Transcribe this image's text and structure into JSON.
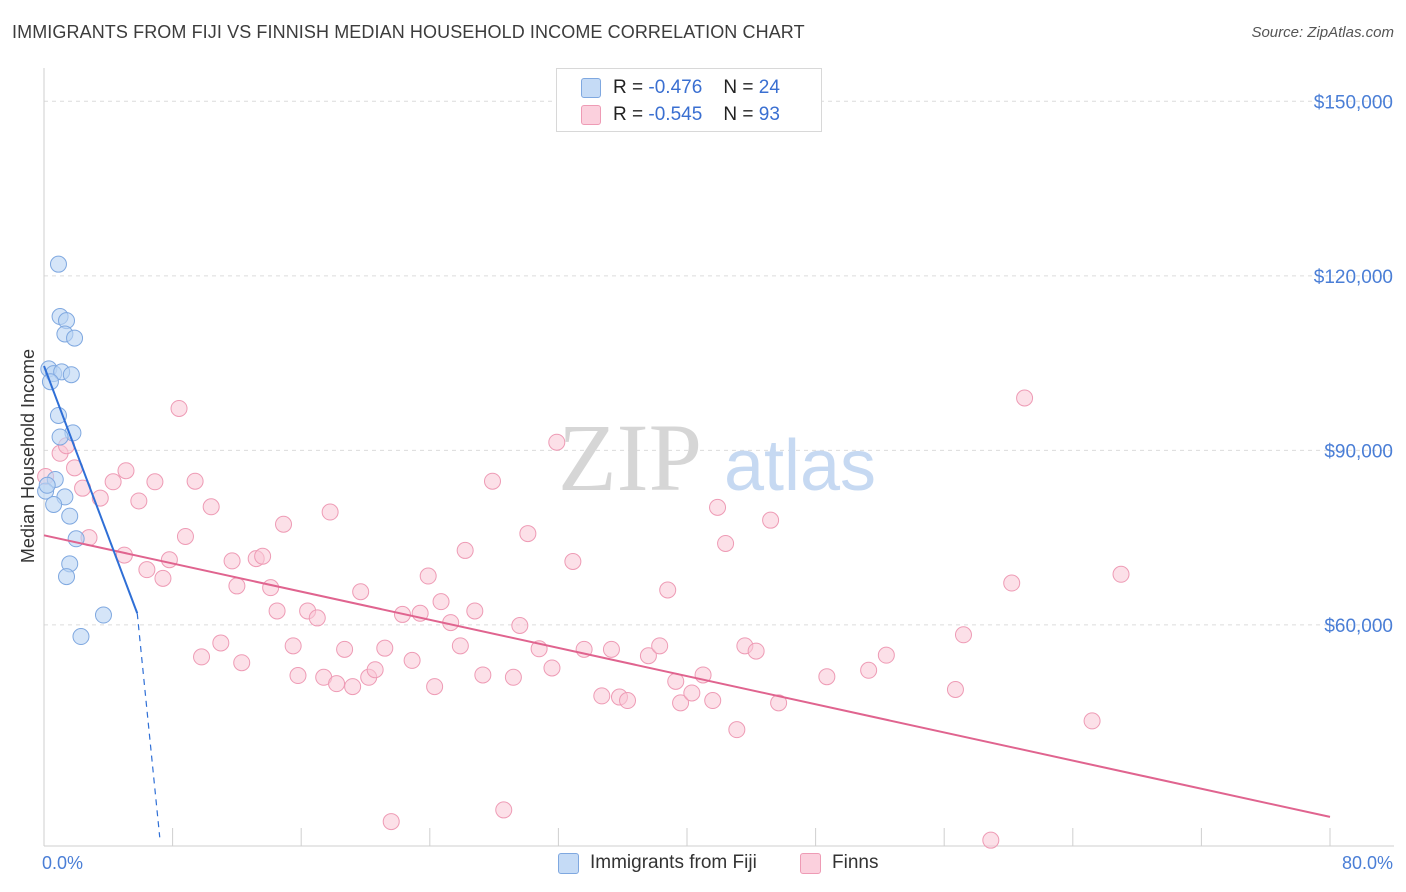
{
  "header": {
    "title": "IMMIGRANTS FROM FIJI VS FINNISH MEDIAN HOUSEHOLD INCOME CORRELATION CHART",
    "source": "Source: ZipAtlas.com"
  },
  "legend": {
    "rows": [
      {
        "r_label": "R =",
        "r_value": "-0.476",
        "n_label": "N =",
        "n_value": "24"
      },
      {
        "r_label": "R =",
        "r_value": "-0.545",
        "n_label": "N =",
        "n_value": "93"
      }
    ],
    "bottom": [
      {
        "label": "Immigrants from Fiji"
      },
      {
        "label": "Finns"
      }
    ]
  },
  "watermark": {
    "zip": "ZIP",
    "atlas": "atlas"
  },
  "colors": {
    "fiji_fill": "#b9d3f3",
    "fiji_stroke": "#7fa8e0",
    "fiji_line": "#2f6fd6",
    "finns_fill": "#f9c7d6",
    "finns_stroke": "#ee9bb5",
    "finns_line": "#e0648f",
    "axis_text": "#4a7ed6",
    "grid": "#dcdcdc"
  },
  "chart_data": {
    "type": "scatter",
    "title": "IMMIGRANTS FROM FIJI VS FINNISH MEDIAN HOUSEHOLD INCOME CORRELATION CHART",
    "xlabel": "",
    "ylabel": "Median Household Income",
    "xlim": [
      0,
      80
    ],
    "ylim": [
      22000,
      154000
    ],
    "x_tick_labels": [
      "0.0%",
      "80.0%"
    ],
    "y_ticks": [
      60000,
      90000,
      120000,
      150000
    ],
    "y_tick_labels": [
      "$60,000",
      "$90,000",
      "$120,000",
      "$150,000"
    ],
    "grid": true,
    "legend_position": "top-center",
    "series": [
      {
        "name": "Immigrants from Fiji",
        "r": -0.476,
        "n": 24,
        "points": [
          [
            0.9,
            122000
          ],
          [
            1.0,
            113000
          ],
          [
            1.4,
            112300
          ],
          [
            1.3,
            110000
          ],
          [
            1.9,
            109300
          ],
          [
            0.3,
            104000
          ],
          [
            0.6,
            103200
          ],
          [
            1.1,
            103500
          ],
          [
            1.7,
            103000
          ],
          [
            0.4,
            101800
          ],
          [
            1.8,
            93000
          ],
          [
            1.0,
            92300
          ],
          [
            0.7,
            85000
          ],
          [
            0.1,
            83000
          ],
          [
            1.3,
            82000
          ],
          [
            0.6,
            80700
          ],
          [
            1.6,
            78700
          ],
          [
            2.0,
            74800
          ],
          [
            1.6,
            70500
          ],
          [
            1.4,
            68300
          ],
          [
            3.7,
            61700
          ],
          [
            2.3,
            58000
          ],
          [
            0.2,
            84000
          ],
          [
            0.9,
            96000
          ]
        ],
        "trend": {
          "x": [
            0,
            5.8
          ],
          "y": [
            104500,
            62000
          ]
        },
        "trend_dashed": {
          "x": [
            5.8,
            7.2
          ],
          "y": [
            62000,
            23500
          ]
        }
      },
      {
        "name": "Finns",
        "r": -0.545,
        "n": 93,
        "points": [
          [
            0.1,
            85500
          ],
          [
            1.0,
            89500
          ],
          [
            1.4,
            90800
          ],
          [
            1.9,
            87000
          ],
          [
            2.4,
            83500
          ],
          [
            2.8,
            75000
          ],
          [
            3.5,
            81800
          ],
          [
            4.3,
            84600
          ],
          [
            5.1,
            86500
          ],
          [
            5.0,
            72000
          ],
          [
            5.9,
            81300
          ],
          [
            6.4,
            69500
          ],
          [
            6.9,
            84600
          ],
          [
            7.4,
            68000
          ],
          [
            7.8,
            71200
          ],
          [
            8.4,
            97200
          ],
          [
            8.8,
            75200
          ],
          [
            9.4,
            84700
          ],
          [
            9.8,
            54500
          ],
          [
            10.4,
            80300
          ],
          [
            11.0,
            56900
          ],
          [
            11.7,
            71000
          ],
          [
            12.3,
            53500
          ],
          [
            12.0,
            66700
          ],
          [
            13.2,
            71400
          ],
          [
            13.6,
            71800
          ],
          [
            14.1,
            66400
          ],
          [
            14.5,
            62400
          ],
          [
            14.9,
            77300
          ],
          [
            15.5,
            56400
          ],
          [
            15.8,
            51300
          ],
          [
            16.4,
            62400
          ],
          [
            17.0,
            61200
          ],
          [
            17.4,
            51000
          ],
          [
            17.8,
            79400
          ],
          [
            18.2,
            49900
          ],
          [
            18.7,
            55800
          ],
          [
            19.2,
            49400
          ],
          [
            19.7,
            65700
          ],
          [
            20.2,
            51000
          ],
          [
            20.6,
            52300
          ],
          [
            21.2,
            56000
          ],
          [
            21.6,
            26200
          ],
          [
            22.3,
            61800
          ],
          [
            22.9,
            53900
          ],
          [
            23.4,
            62000
          ],
          [
            23.9,
            68400
          ],
          [
            24.3,
            49400
          ],
          [
            24.7,
            64000
          ],
          [
            25.3,
            60400
          ],
          [
            25.9,
            56400
          ],
          [
            26.2,
            72800
          ],
          [
            26.8,
            62400
          ],
          [
            27.3,
            51400
          ],
          [
            27.9,
            84700
          ],
          [
            28.6,
            28200
          ],
          [
            29.2,
            51000
          ],
          [
            29.6,
            59900
          ],
          [
            30.1,
            75700
          ],
          [
            30.8,
            55900
          ],
          [
            31.6,
            52600
          ],
          [
            31.9,
            91400
          ],
          [
            32.9,
            70900
          ],
          [
            33.6,
            55800
          ],
          [
            34.7,
            47800
          ],
          [
            35.3,
            55800
          ],
          [
            35.8,
            47600
          ],
          [
            36.3,
            47000
          ],
          [
            37.6,
            54700
          ],
          [
            38.3,
            56400
          ],
          [
            38.8,
            66000
          ],
          [
            39.3,
            50300
          ],
          [
            39.6,
            46600
          ],
          [
            40.3,
            48300
          ],
          [
            41.0,
            51400
          ],
          [
            41.6,
            47000
          ],
          [
            41.9,
            80200
          ],
          [
            42.4,
            74000
          ],
          [
            43.1,
            42000
          ],
          [
            43.6,
            56400
          ],
          [
            44.3,
            55500
          ],
          [
            45.2,
            78000
          ],
          [
            45.7,
            46600
          ],
          [
            48.7,
            51100
          ],
          [
            51.3,
            52200
          ],
          [
            52.4,
            54800
          ],
          [
            56.7,
            48900
          ],
          [
            57.2,
            58300
          ],
          [
            58.9,
            23000
          ],
          [
            60.2,
            67200
          ],
          [
            65.2,
            43500
          ],
          [
            67.0,
            68700
          ],
          [
            61.0,
            99000
          ]
        ],
        "trend": {
          "x": [
            0,
            80
          ],
          "y": [
            75400,
            27000
          ]
        }
      }
    ]
  }
}
